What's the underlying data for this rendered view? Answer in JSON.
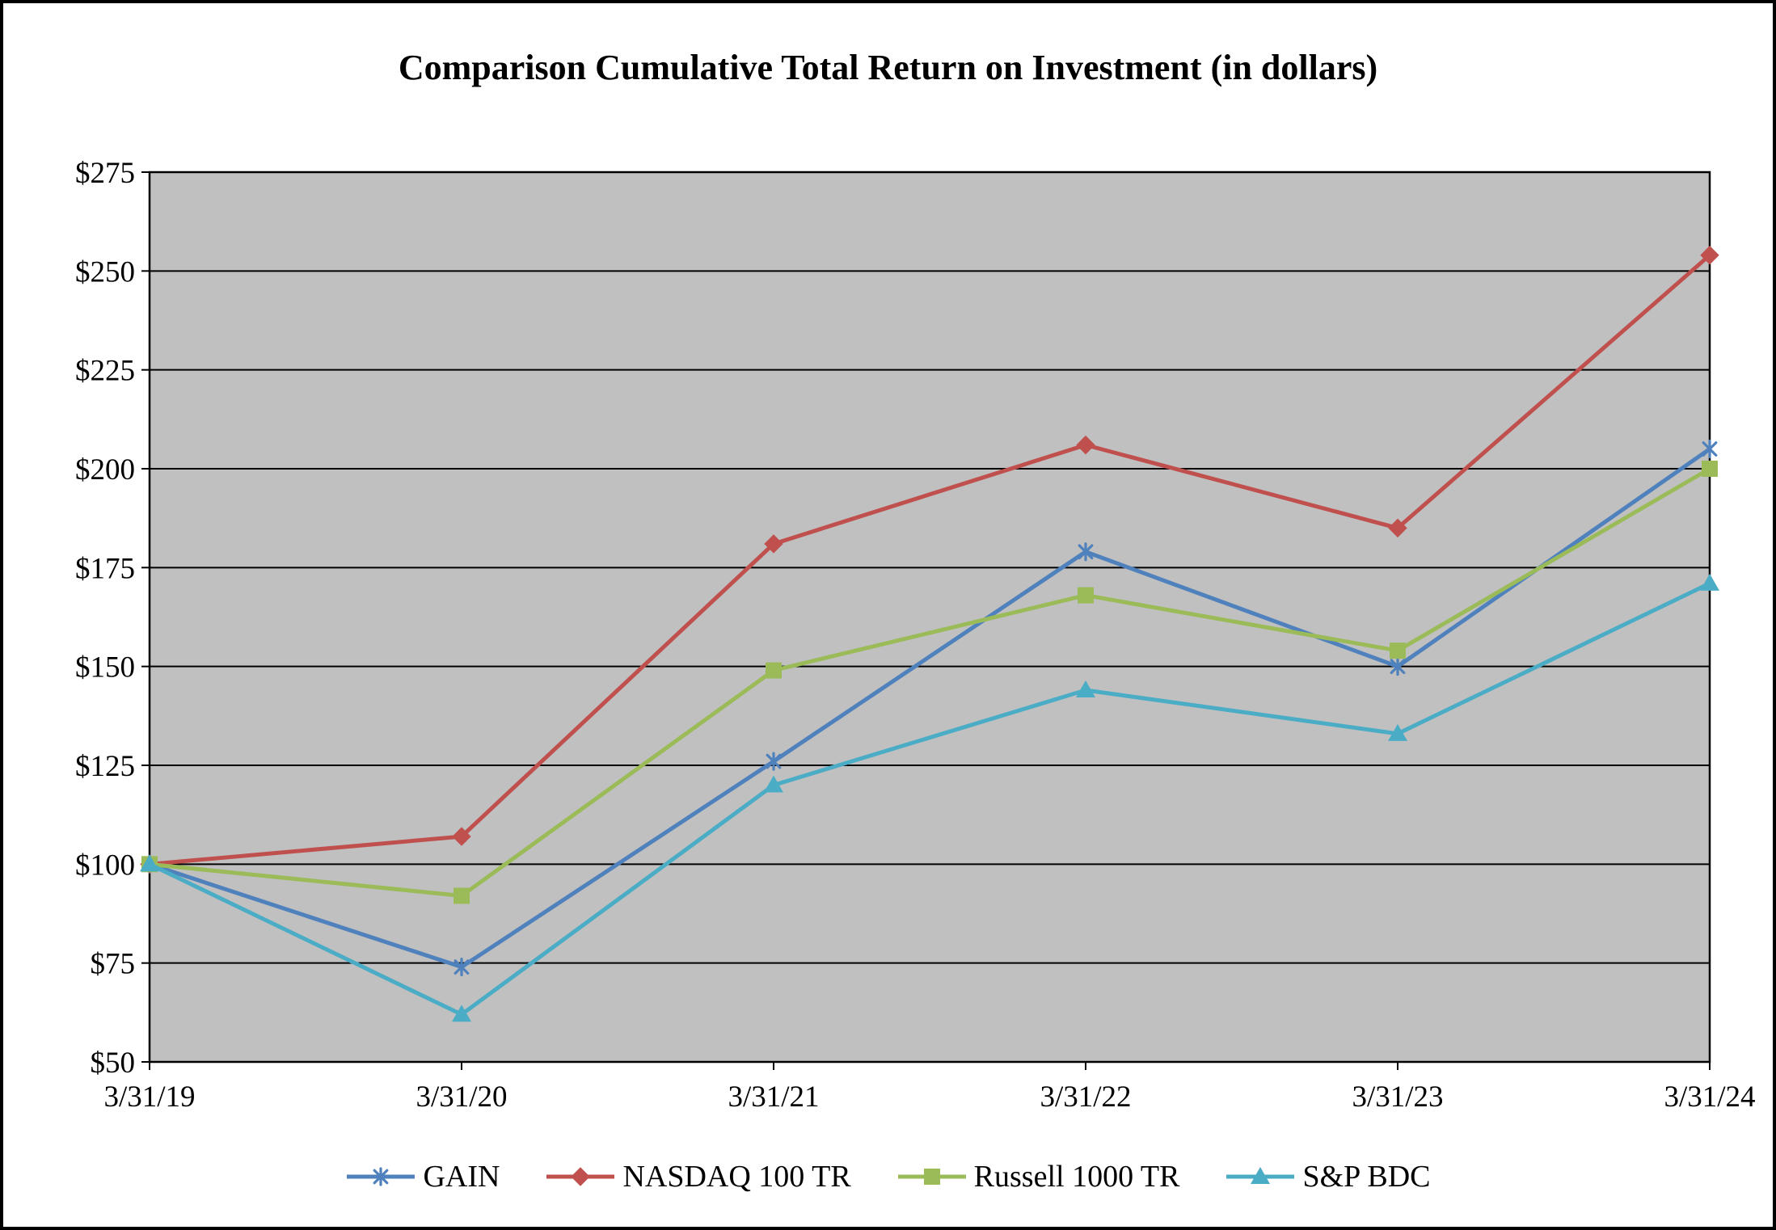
{
  "chart_data": {
    "type": "line",
    "title": "Comparison Cumulative Total Return on Investment (in dollars)",
    "xlabel": "",
    "ylabel": "",
    "categories": [
      "3/31/19",
      "3/31/20",
      "3/31/21",
      "3/31/22",
      "3/31/23",
      "3/31/24"
    ],
    "series": [
      {
        "name": "GAIN",
        "color": "#4F81BD",
        "marker": "asterisk",
        "values": [
          100,
          74,
          126,
          179,
          150,
          205
        ]
      },
      {
        "name": "NASDAQ 100 TR",
        "color": "#C0504D",
        "marker": "diamond",
        "values": [
          100,
          107,
          181,
          206,
          185,
          254
        ]
      },
      {
        "name": "Russell 1000 TR",
        "color": "#9BBB59",
        "marker": "square",
        "values": [
          100,
          92,
          149,
          168,
          154,
          200
        ]
      },
      {
        "name": "S&P BDC",
        "color": "#4BACC6",
        "marker": "triangle",
        "values": [
          100,
          62,
          120,
          144,
          133,
          171
        ]
      }
    ],
    "ylim": [
      50,
      275
    ],
    "ytick_step": 25,
    "y_tick_prefix": "$",
    "plot_bg": "#C0C0C0",
    "grid": "on",
    "legend_position": "bottom"
  }
}
